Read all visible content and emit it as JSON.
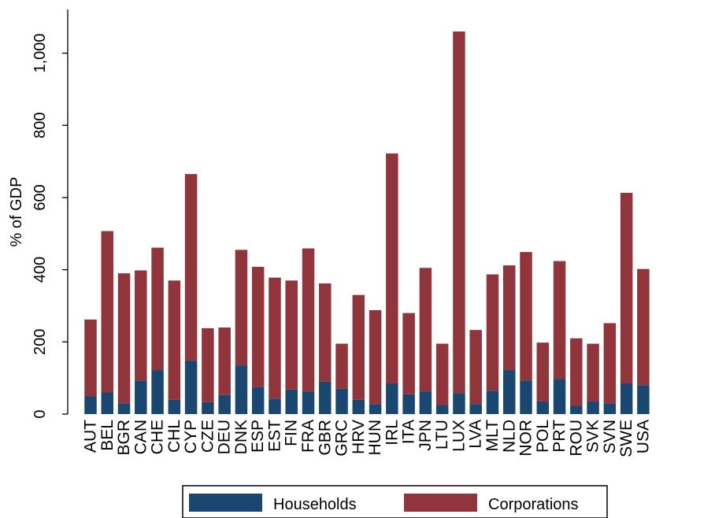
{
  "chart_data": {
    "type": "bar",
    "stacked": true,
    "title": "",
    "xlabel": "",
    "ylabel": "% of GDP",
    "ylim": [
      0,
      1100
    ],
    "yticks": [
      0,
      200,
      400,
      600,
      800,
      1000
    ],
    "ytick_labels": [
      "0",
      "200",
      "400",
      "600",
      "800",
      "1,000"
    ],
    "grid": false,
    "legend_position": "bottom",
    "categories": [
      "AUT",
      "BEL",
      "BGR",
      "CAN",
      "CHE",
      "CHL",
      "CYP",
      "CZE",
      "DEU",
      "DNK",
      "ESP",
      "EST",
      "FIN",
      "FRA",
      "GBR",
      "GRC",
      "HRV",
      "HUN",
      "IRL",
      "ITA",
      "JPN",
      "LTU",
      "LUX",
      "LVA",
      "MLT",
      "NLD",
      "NOR",
      "POL",
      "PRT",
      "ROU",
      "SVK",
      "SVN",
      "SWE",
      "USA"
    ],
    "series": [
      {
        "name": "Households",
        "color": "#1a476f",
        "values": [
          50,
          60,
          30,
          93,
          122,
          40,
          148,
          33,
          53,
          135,
          75,
          43,
          68,
          63,
          90,
          70,
          40,
          28,
          85,
          55,
          63,
          25,
          58,
          28,
          65,
          122,
          93,
          35,
          97,
          23,
          35,
          30,
          85,
          80
        ]
      },
      {
        "name": "Corporations",
        "color": "#90353b",
        "values": [
          212,
          447,
          360,
          305,
          339,
          330,
          517,
          205,
          187,
          320,
          333,
          335,
          302,
          396,
          272,
          125,
          290,
          260,
          637,
          225,
          342,
          170,
          1002,
          205,
          322,
          290,
          356,
          163,
          327,
          187,
          160,
          222,
          528,
          322
        ]
      }
    ]
  }
}
